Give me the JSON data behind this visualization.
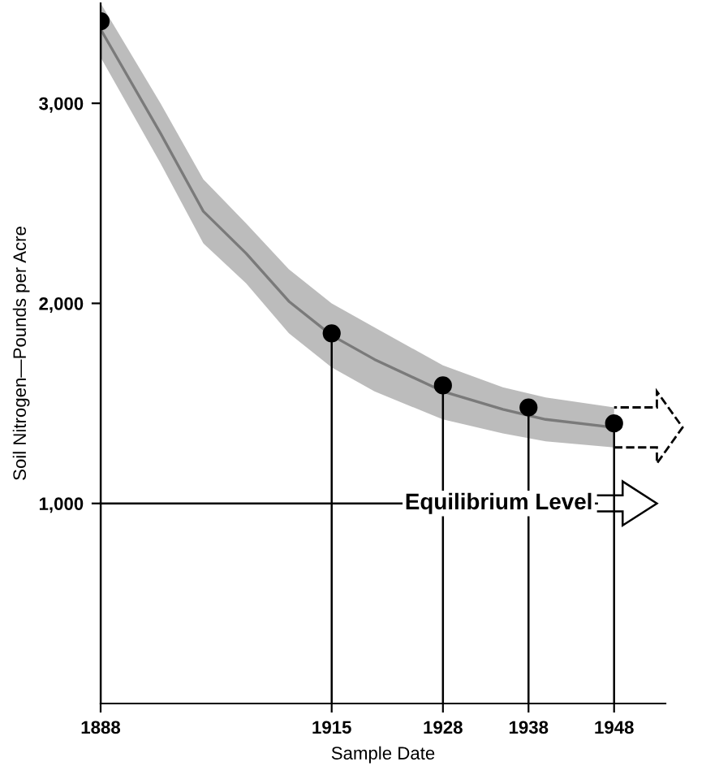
{
  "chart_data": {
    "type": "lollipop",
    "xlabel": "Sample Date",
    "ylabel": "Soil Nitrogen—Pounds per Acre",
    "xlim": [
      1888,
      1954
    ],
    "ylim": [
      0,
      3500
    ],
    "xticks": [
      1888,
      1915,
      1928,
      1938,
      1948
    ],
    "yticks": [
      {
        "value": 1000,
        "label": "1,000"
      },
      {
        "value": 2000,
        "label": "2,000"
      },
      {
        "value": 3000,
        "label": "3,000"
      }
    ],
    "series": [
      {
        "type": "line",
        "color": "#7a7a7a",
        "x": [
          1888,
          1895,
          1900,
          1905,
          1910,
          1915,
          1920,
          1928,
          1935,
          1940,
          1948
        ],
        "values": [
          3370,
          2850,
          2460,
          2250,
          2010,
          1840,
          1720,
          1560,
          1470,
          1420,
          1380
        ],
        "lower": [
          3230,
          2700,
          2300,
          2100,
          1850,
          1680,
          1560,
          1420,
          1350,
          1310,
          1280
        ],
        "upper": [
          3500,
          3000,
          2620,
          2400,
          2170,
          2000,
          1880,
          1690,
          1580,
          1530,
          1480
        ]
      },
      {
        "color": "#000000",
        "x": [
          1888,
          1915,
          1928,
          1938,
          1948
        ],
        "values": [
          3410,
          1850,
          1590,
          1480,
          1400
        ],
        "marker": "circle"
      }
    ],
    "ref_lines": [
      {
        "axis": "y",
        "value": 1000,
        "label": "Equilibrium Level",
        "color": "#000000"
      }
    ],
    "grid": false,
    "legend": false
  }
}
